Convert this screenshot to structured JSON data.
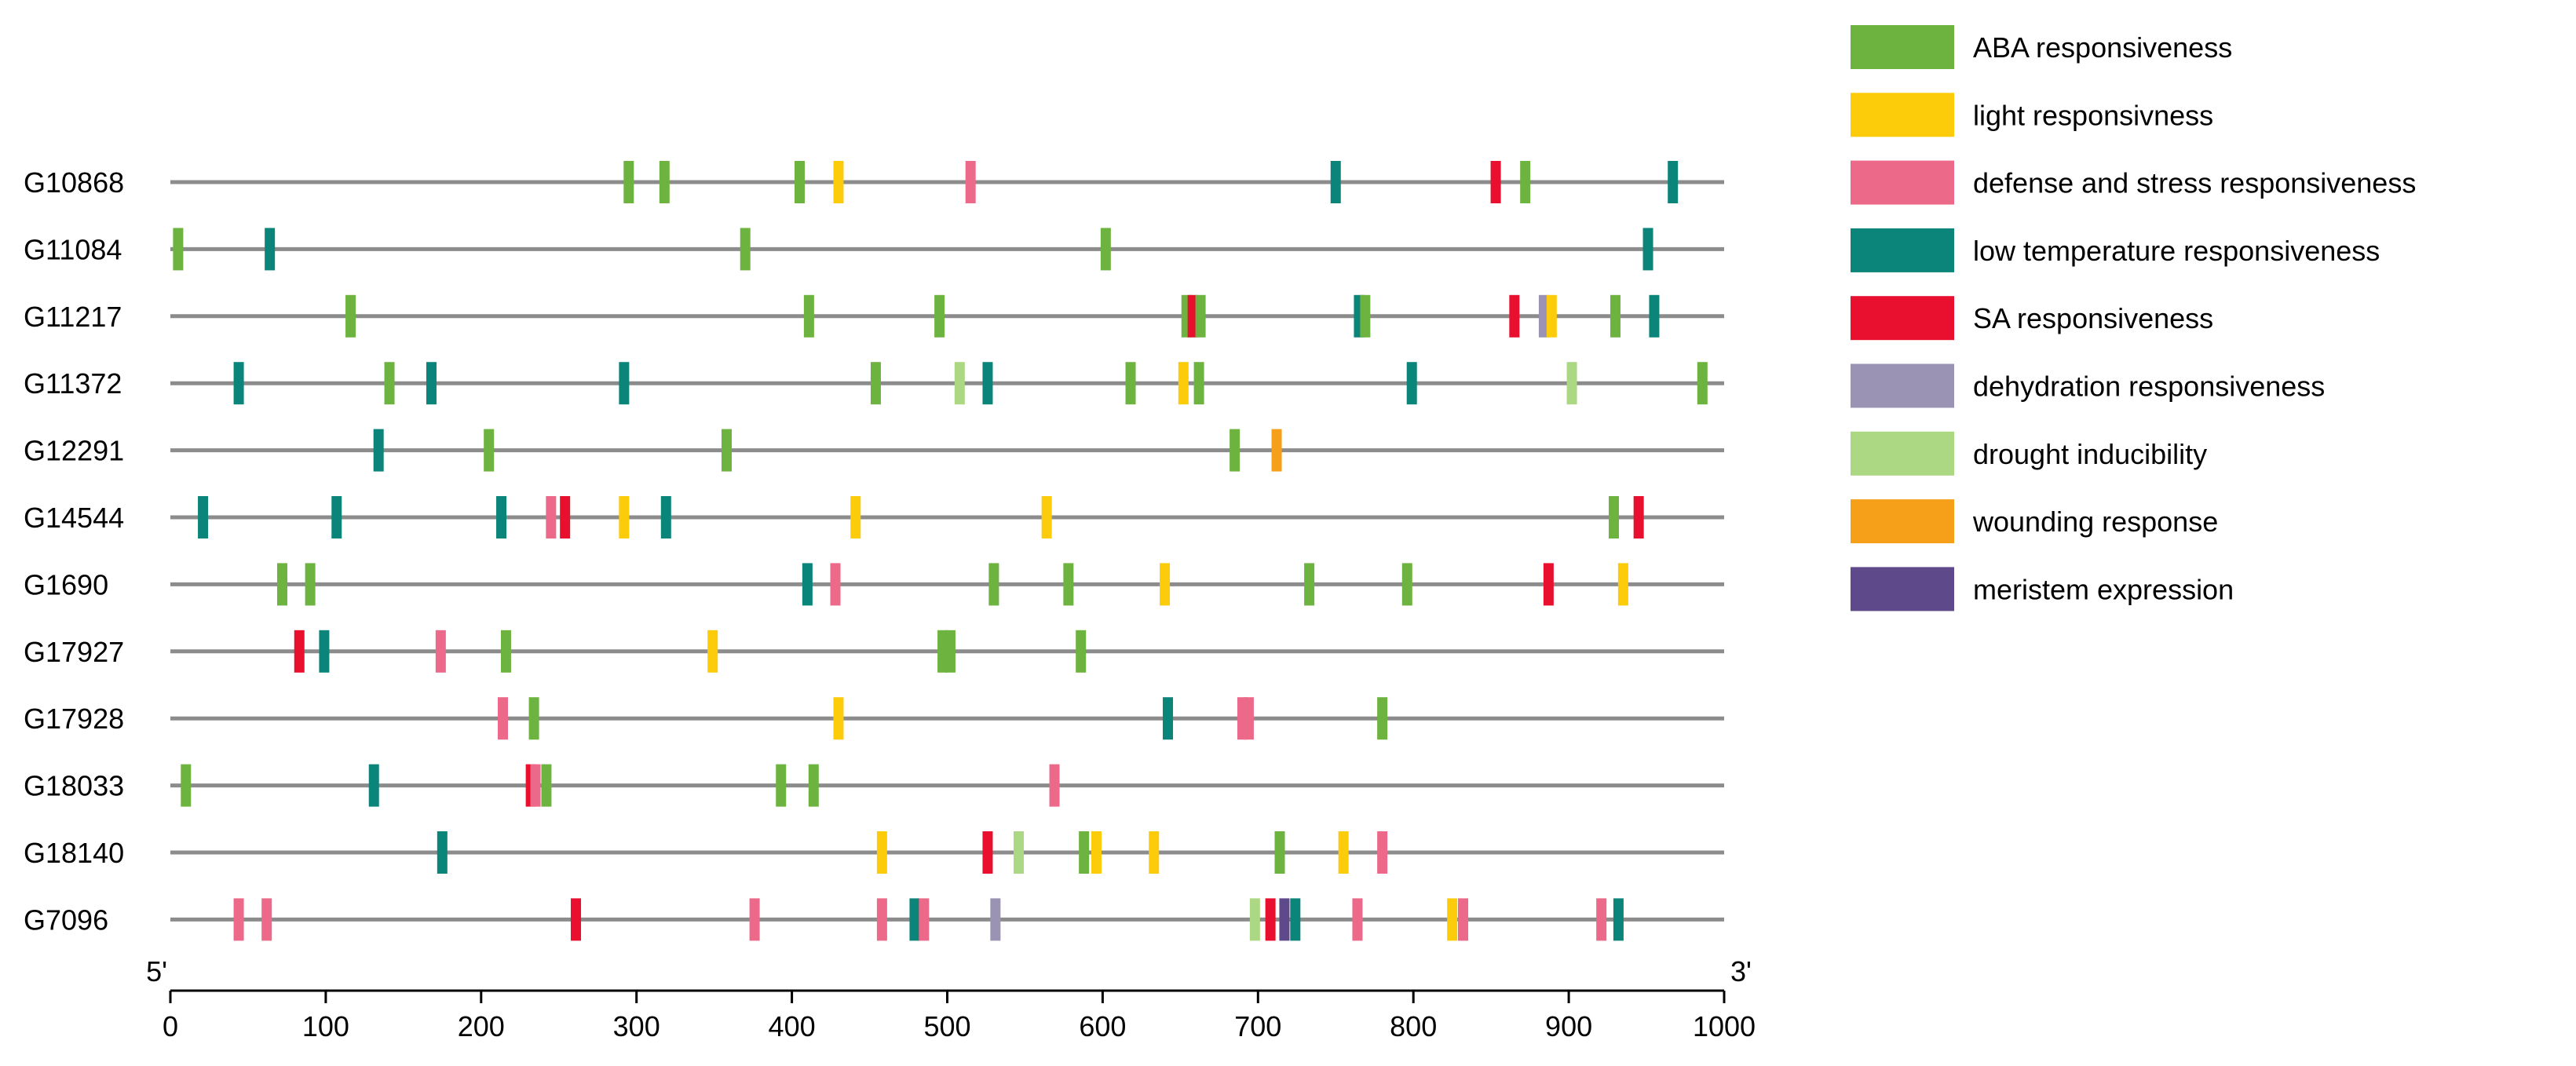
{
  "chart_data": {
    "type": "scatter",
    "title": "",
    "xlabel": "",
    "ylabel": "",
    "xlim": [
      0,
      1000
    ],
    "x_ticks": [
      0,
      100,
      200,
      300,
      400,
      500,
      600,
      700,
      800,
      900,
      1000
    ],
    "end_labels": {
      "start": "5'",
      "end": "3'"
    },
    "grid": false,
    "legend_position": "top-right",
    "categories": [
      {
        "key": "aba",
        "name": "ABA responsiveness",
        "color": "#6db33f"
      },
      {
        "key": "light",
        "name": "light responsivness",
        "color": "#fccc0a"
      },
      {
        "key": "defense",
        "name": "defense and stress responsiveness",
        "color": "#ec6989"
      },
      {
        "key": "lowtemp",
        "name": "low temperature responsiveness",
        "color": "#0b857a"
      },
      {
        "key": "sa",
        "name": "SA responsiveness",
        "color": "#e8102e"
      },
      {
        "key": "dehydration",
        "name": "dehydration responsiveness",
        "color": "#9a93b4"
      },
      {
        "key": "drought",
        "name": "drought inducibility",
        "color": "#acd783"
      },
      {
        "key": "wounding",
        "name": "wounding response",
        "color": "#f6a01a"
      },
      {
        "key": "meristem",
        "name": "meristem expression",
        "color": "#5e4a8b"
      }
    ],
    "genes": [
      {
        "name": "G10868",
        "elements": [
          {
            "pos": 295,
            "cat": "aba"
          },
          {
            "pos": 318,
            "cat": "aba"
          },
          {
            "pos": 405,
            "cat": "aba"
          },
          {
            "pos": 430,
            "cat": "light"
          },
          {
            "pos": 515,
            "cat": "defense"
          },
          {
            "pos": 750,
            "cat": "lowtemp"
          },
          {
            "pos": 853,
            "cat": "sa"
          },
          {
            "pos": 872,
            "cat": "aba"
          },
          {
            "pos": 967,
            "cat": "lowtemp"
          }
        ]
      },
      {
        "name": "G11084",
        "elements": [
          {
            "pos": 5,
            "cat": "aba"
          },
          {
            "pos": 64,
            "cat": "lowtemp"
          },
          {
            "pos": 370,
            "cat": "aba"
          },
          {
            "pos": 602,
            "cat": "aba"
          },
          {
            "pos": 951,
            "cat": "lowtemp"
          }
        ]
      },
      {
        "name": "G11217",
        "elements": [
          {
            "pos": 116,
            "cat": "aba"
          },
          {
            "pos": 411,
            "cat": "aba"
          },
          {
            "pos": 495,
            "cat": "aba"
          },
          {
            "pos": 654,
            "cat": "aba"
          },
          {
            "pos": 658,
            "cat": "sa"
          },
          {
            "pos": 663,
            "cat": "aba"
          },
          {
            "pos": 765,
            "cat": "lowtemp"
          },
          {
            "pos": 769,
            "cat": "aba"
          },
          {
            "pos": 865,
            "cat": "sa"
          },
          {
            "pos": 884,
            "cat": "dehydration"
          },
          {
            "pos": 889,
            "cat": "light"
          },
          {
            "pos": 930,
            "cat": "aba"
          },
          {
            "pos": 955,
            "cat": "lowtemp"
          }
        ]
      },
      {
        "name": "G11372",
        "elements": [
          {
            "pos": 44,
            "cat": "lowtemp"
          },
          {
            "pos": 141,
            "cat": "aba"
          },
          {
            "pos": 168,
            "cat": "lowtemp"
          },
          {
            "pos": 292,
            "cat": "lowtemp"
          },
          {
            "pos": 454,
            "cat": "aba"
          },
          {
            "pos": 508,
            "cat": "drought"
          },
          {
            "pos": 526,
            "cat": "lowtemp"
          },
          {
            "pos": 618,
            "cat": "aba"
          },
          {
            "pos": 652,
            "cat": "light"
          },
          {
            "pos": 662,
            "cat": "aba"
          },
          {
            "pos": 799,
            "cat": "lowtemp"
          },
          {
            "pos": 902,
            "cat": "drought"
          },
          {
            "pos": 986,
            "cat": "aba"
          }
        ]
      },
      {
        "name": "G12291",
        "elements": [
          {
            "pos": 134,
            "cat": "lowtemp"
          },
          {
            "pos": 205,
            "cat": "aba"
          },
          {
            "pos": 358,
            "cat": "aba"
          },
          {
            "pos": 685,
            "cat": "aba"
          },
          {
            "pos": 712,
            "cat": "wounding"
          }
        ]
      },
      {
        "name": "G14544",
        "elements": [
          {
            "pos": 21,
            "cat": "lowtemp"
          },
          {
            "pos": 107,
            "cat": "lowtemp"
          },
          {
            "pos": 213,
            "cat": "lowtemp"
          },
          {
            "pos": 245,
            "cat": "defense"
          },
          {
            "pos": 254,
            "cat": "sa"
          },
          {
            "pos": 292,
            "cat": "light"
          },
          {
            "pos": 319,
            "cat": "lowtemp"
          },
          {
            "pos": 441,
            "cat": "light"
          },
          {
            "pos": 564,
            "cat": "light"
          },
          {
            "pos": 929,
            "cat": "aba"
          },
          {
            "pos": 945,
            "cat": "sa"
          }
        ]
      },
      {
        "name": "G1690",
        "elements": [
          {
            "pos": 72,
            "cat": "aba"
          },
          {
            "pos": 90,
            "cat": "aba"
          },
          {
            "pos": 410,
            "cat": "lowtemp"
          },
          {
            "pos": 428,
            "cat": "defense"
          },
          {
            "pos": 530,
            "cat": "aba"
          },
          {
            "pos": 578,
            "cat": "aba"
          },
          {
            "pos": 640,
            "cat": "light"
          },
          {
            "pos": 733,
            "cat": "aba"
          },
          {
            "pos": 796,
            "cat": "aba"
          },
          {
            "pos": 887,
            "cat": "sa"
          },
          {
            "pos": 935,
            "cat": "light"
          }
        ]
      },
      {
        "name": "G17927",
        "elements": [
          {
            "pos": 83,
            "cat": "sa"
          },
          {
            "pos": 99,
            "cat": "lowtemp"
          },
          {
            "pos": 174,
            "cat": "defense"
          },
          {
            "pos": 216,
            "cat": "aba"
          },
          {
            "pos": 349,
            "cat": "light"
          },
          {
            "pos": 497,
            "cat": "aba"
          },
          {
            "pos": 502,
            "cat": "aba"
          },
          {
            "pos": 586,
            "cat": "aba"
          }
        ]
      },
      {
        "name": "G17928",
        "elements": [
          {
            "pos": 214,
            "cat": "defense"
          },
          {
            "pos": 234,
            "cat": "aba"
          },
          {
            "pos": 430,
            "cat": "light"
          },
          {
            "pos": 642,
            "cat": "lowtemp"
          },
          {
            "pos": 690,
            "cat": "defense"
          },
          {
            "pos": 694,
            "cat": "defense"
          },
          {
            "pos": 780,
            "cat": "aba"
          }
        ]
      },
      {
        "name": "G18033",
        "elements": [
          {
            "pos": 10,
            "cat": "aba"
          },
          {
            "pos": 131,
            "cat": "lowtemp"
          },
          {
            "pos": 232,
            "cat": "sa"
          },
          {
            "pos": 235,
            "cat": "defense"
          },
          {
            "pos": 242,
            "cat": "aba"
          },
          {
            "pos": 393,
            "cat": "aba"
          },
          {
            "pos": 414,
            "cat": "aba"
          },
          {
            "pos": 569,
            "cat": "defense"
          }
        ]
      },
      {
        "name": "G18140",
        "elements": [
          {
            "pos": 175,
            "cat": "lowtemp"
          },
          {
            "pos": 458,
            "cat": "light"
          },
          {
            "pos": 526,
            "cat": "sa"
          },
          {
            "pos": 546,
            "cat": "drought"
          },
          {
            "pos": 588,
            "cat": "aba"
          },
          {
            "pos": 596,
            "cat": "light"
          },
          {
            "pos": 633,
            "cat": "light"
          },
          {
            "pos": 714,
            "cat": "aba"
          },
          {
            "pos": 755,
            "cat": "light"
          },
          {
            "pos": 780,
            "cat": "defense"
          }
        ]
      },
      {
        "name": "G7096",
        "elements": [
          {
            "pos": 44,
            "cat": "defense"
          },
          {
            "pos": 62,
            "cat": "defense"
          },
          {
            "pos": 261,
            "cat": "sa"
          },
          {
            "pos": 376,
            "cat": "defense"
          },
          {
            "pos": 458,
            "cat": "defense"
          },
          {
            "pos": 479,
            "cat": "lowtemp"
          },
          {
            "pos": 485,
            "cat": "defense"
          },
          {
            "pos": 531,
            "cat": "dehydration"
          },
          {
            "pos": 698,
            "cat": "drought"
          },
          {
            "pos": 708,
            "cat": "sa"
          },
          {
            "pos": 717,
            "cat": "meristem"
          },
          {
            "pos": 724,
            "cat": "lowtemp"
          },
          {
            "pos": 764,
            "cat": "defense"
          },
          {
            "pos": 825,
            "cat": "light"
          },
          {
            "pos": 832,
            "cat": "defense"
          },
          {
            "pos": 921,
            "cat": "defense"
          },
          {
            "pos": 932,
            "cat": "lowtemp"
          }
        ]
      }
    ]
  }
}
